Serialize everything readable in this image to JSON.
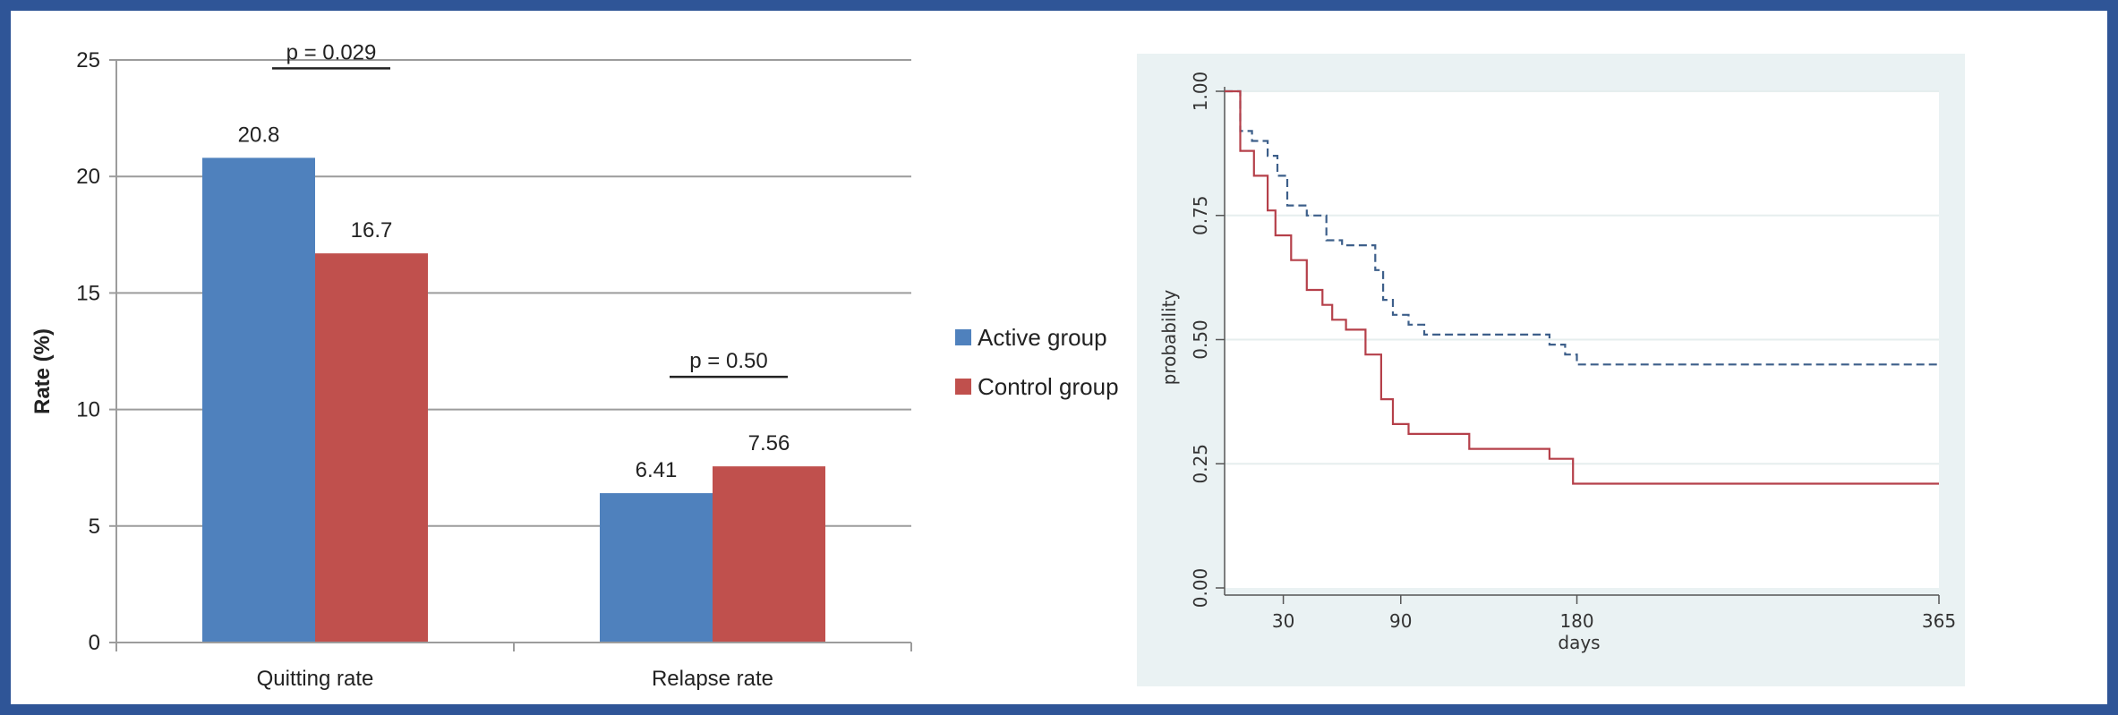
{
  "chart_data": [
    {
      "type": "bar",
      "categories": [
        "Quitting rate",
        "Relapse rate"
      ],
      "series": [
        {
          "name": "Active group",
          "values": [
            20.8,
            6.41
          ],
          "value_labels": [
            "20.8",
            "6.41"
          ],
          "color": "#4f81bd"
        },
        {
          "name": "Control group",
          "values": [
            16.7,
            7.56
          ],
          "value_labels": [
            "16.7",
            "7.56"
          ],
          "color": "#c0504d"
        }
      ],
      "ylabel": "Rate (%)",
      "ylim": [
        0,
        25
      ],
      "yticks": [
        0,
        5,
        10,
        15,
        20,
        25
      ],
      "grid": true,
      "annotations": [
        "p = 0.029",
        "p = 0.50"
      ],
      "legend": "right"
    },
    {
      "type": "line",
      "ylabel": "probability",
      "xlabel": "days",
      "xlim": [
        0,
        365
      ],
      "ylim": [
        0,
        1
      ],
      "xticks": [
        30,
        90,
        180,
        365
      ],
      "yticks": [
        "0.00",
        "0.25",
        "0.50",
        "0.75",
        "1.00"
      ],
      "grid": true,
      "series": [
        {
          "style": "dashed",
          "color": "#3d5f8a",
          "points": [
            [
              0,
              1.0
            ],
            [
              8,
              1.0
            ],
            [
              8,
              0.92
            ],
            [
              14,
              0.92
            ],
            [
              14,
              0.9
            ],
            [
              22,
              0.9
            ],
            [
              22,
              0.87
            ],
            [
              27,
              0.87
            ],
            [
              27,
              0.83
            ],
            [
              32,
              0.83
            ],
            [
              32,
              0.77
            ],
            [
              42,
              0.77
            ],
            [
              42,
              0.75
            ],
            [
              52,
              0.75
            ],
            [
              52,
              0.7
            ],
            [
              60,
              0.7
            ],
            [
              60,
              0.69
            ],
            [
              77,
              0.69
            ],
            [
              77,
              0.64
            ],
            [
              81,
              0.64
            ],
            [
              81,
              0.58
            ],
            [
              86,
              0.58
            ],
            [
              86,
              0.55
            ],
            [
              94,
              0.55
            ],
            [
              94,
              0.53
            ],
            [
              102,
              0.53
            ],
            [
              102,
              0.51
            ],
            [
              166,
              0.51
            ],
            [
              166,
              0.49
            ],
            [
              174,
              0.49
            ],
            [
              174,
              0.47
            ],
            [
              180,
              0.47
            ],
            [
              180,
              0.45
            ],
            [
              365,
              0.45
            ]
          ]
        },
        {
          "style": "solid",
          "color": "#b5404a",
          "points": [
            [
              0,
              1.0
            ],
            [
              8,
              1.0
            ],
            [
              8,
              0.88
            ],
            [
              15,
              0.88
            ],
            [
              15,
              0.83
            ],
            [
              22,
              0.83
            ],
            [
              22,
              0.76
            ],
            [
              26,
              0.76
            ],
            [
              26,
              0.71
            ],
            [
              34,
              0.71
            ],
            [
              34,
              0.66
            ],
            [
              42,
              0.66
            ],
            [
              42,
              0.6
            ],
            [
              50,
              0.6
            ],
            [
              50,
              0.57
            ],
            [
              55,
              0.57
            ],
            [
              55,
              0.54
            ],
            [
              62,
              0.54
            ],
            [
              62,
              0.52
            ],
            [
              72,
              0.52
            ],
            [
              72,
              0.47
            ],
            [
              80,
              0.47
            ],
            [
              80,
              0.38
            ],
            [
              86,
              0.38
            ],
            [
              86,
              0.33
            ],
            [
              94,
              0.33
            ],
            [
              94,
              0.31
            ],
            [
              125,
              0.31
            ],
            [
              125,
              0.28
            ],
            [
              166,
              0.28
            ],
            [
              166,
              0.26
            ],
            [
              178,
              0.26
            ],
            [
              178,
              0.21
            ],
            [
              365,
              0.21
            ]
          ]
        }
      ]
    }
  ]
}
